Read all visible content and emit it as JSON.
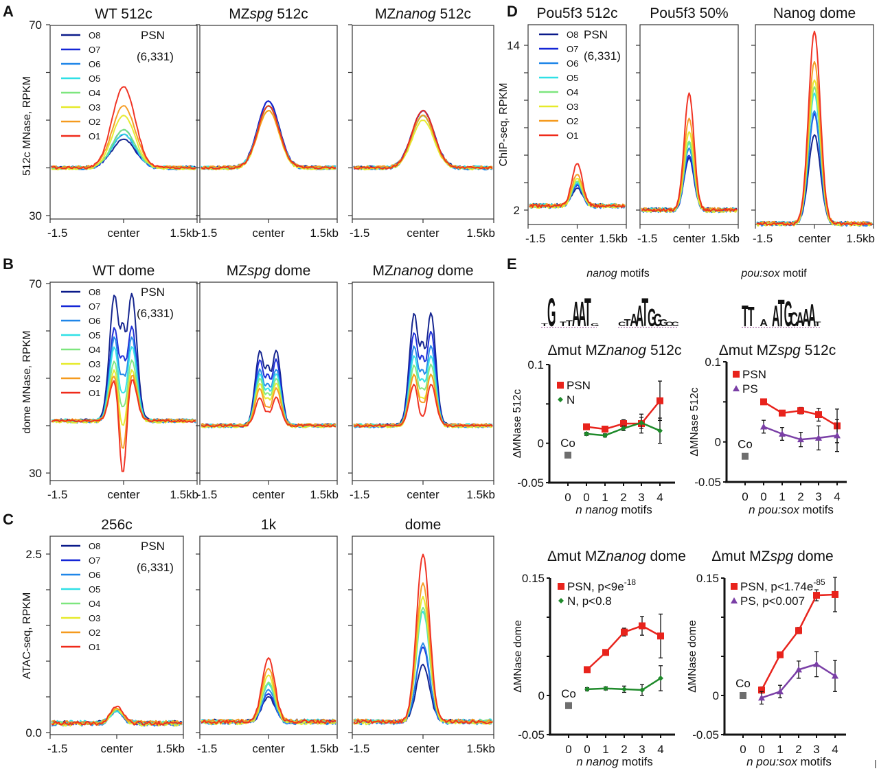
{
  "figure": {
    "panel_letters": [
      "A",
      "B",
      "C",
      "D",
      "E"
    ]
  },
  "profiles_legend": {
    "entries": [
      {
        "label": "O8",
        "color": "#0a1a8a"
      },
      {
        "label": "O7",
        "color": "#1426d6"
      },
      {
        "label": "O6",
        "color": "#1f86e8"
      },
      {
        "label": "O5",
        "color": "#2fe0e6"
      },
      {
        "label": "O4",
        "color": "#7de67e"
      },
      {
        "label": "O3",
        "color": "#e6ea2a"
      },
      {
        "label": "O2",
        "color": "#f59a1e"
      },
      {
        "label": "O1",
        "color": "#ef2a1a"
      }
    ],
    "annotation_line1": "PSN",
    "annotation_line2": "(6,331)"
  },
  "chart_data": [
    {
      "id": "A",
      "type": "line",
      "ylabel": "512c MNase, RPKM",
      "ylim": [
        30,
        70
      ],
      "yticks_labeled": [
        "70",
        "30"
      ],
      "xtick_labels": [
        "-1.5",
        "center",
        "1.5kb"
      ],
      "subplots": [
        {
          "title": "WT 512c",
          "title_parts": [
            [
              "WT 512c",
              false
            ]
          ],
          "peak": {
            "O8": 46,
            "O7": 47,
            "O6": 48,
            "O5": 47,
            "O4": 48,
            "O3": 51,
            "O2": 53,
            "O1": 57
          },
          "baseline": 40,
          "shape": "single",
          "legend": true
        },
        {
          "title": "MZspg 512c",
          "title_parts": [
            [
              "MZ",
              false
            ],
            [
              "spg",
              true
            ],
            [
              " 512c",
              false
            ]
          ],
          "peak": {
            "O8": 54,
            "O7": 54,
            "O6": 53,
            "O5": 53,
            "O4": 53,
            "O3": 52,
            "O2": 52,
            "O1": 53
          },
          "baseline": 40,
          "shape": "single"
        },
        {
          "title": "MZnanog 512c",
          "title_parts": [
            [
              "MZ",
              false
            ],
            [
              "nanog",
              true
            ],
            [
              " 512c",
              false
            ]
          ],
          "peak": {
            "O8": 52,
            "O7": 52,
            "O6": 51,
            "O5": 51,
            "O4": 51,
            "O3": 50,
            "O2": 51,
            "O1": 52
          },
          "baseline": 40,
          "shape": "single"
        }
      ]
    },
    {
      "id": "B",
      "type": "line",
      "ylabel": "dome MNase, RPKM",
      "ylim": [
        30,
        70
      ],
      "yticks_labeled": [
        "70",
        "30"
      ],
      "xtick_labels": [
        "-1.5",
        "center",
        "1.5kb"
      ],
      "subplots": [
        {
          "title": "WT dome",
          "title_parts": [
            [
              "WT dome",
              false
            ]
          ],
          "peak": {
            "O8": 68,
            "O7": 61,
            "O6": 59,
            "O5": 57,
            "O4": 54,
            "O3": 52,
            "O2": 51,
            "O1": 50
          },
          "dip": {
            "O8": 62,
            "O7": 55,
            "O6": 51,
            "O5": 47,
            "O4": 44,
            "O3": 40,
            "O2": 35,
            "O1": 30
          },
          "baseline": 41,
          "shape": "double",
          "legend": true
        },
        {
          "title": "MZspg dome",
          "title_parts": [
            [
              "MZ",
              false
            ],
            [
              "spg",
              true
            ],
            [
              " dome",
              false
            ]
          ],
          "peak": {
            "O8": 56,
            "O7": 54,
            "O6": 52,
            "O5": 51,
            "O4": 50,
            "O3": 49,
            "O2": 48,
            "O1": 46
          },
          "dip": {
            "O8": 53,
            "O7": 51,
            "O6": 49,
            "O5": 48,
            "O4": 47,
            "O3": 46,
            "O2": 44,
            "O1": 43
          },
          "baseline": 40,
          "shape": "double"
        },
        {
          "title": "MZnanog dome",
          "title_parts": [
            [
              "MZ",
              false
            ],
            [
              "nanog",
              true
            ],
            [
              " dome",
              false
            ]
          ],
          "peak": {
            "O8": 64,
            "O7": 60,
            "O6": 57,
            "O5": 55,
            "O4": 53,
            "O3": 51,
            "O2": 51,
            "O1": 49
          },
          "dip": {
            "O8": 58,
            "O7": 55,
            "O6": 52,
            "O5": 50,
            "O4": 48,
            "O3": 46,
            "O2": 45,
            "O1": 42
          },
          "baseline": 40,
          "shape": "double"
        }
      ]
    },
    {
      "id": "C",
      "type": "line",
      "ylabel": "ATAC-seq, RPKM",
      "ylim": [
        0,
        2.5
      ],
      "yticks_labeled": [
        "2.5",
        "0.0"
      ],
      "xtick_labels": [
        "-1.5",
        "center",
        "1.5kb"
      ],
      "subplots": [
        {
          "title": "256c",
          "title_parts": [
            [
              "256c",
              false
            ]
          ],
          "peak": {
            "O8": 0.3,
            "O7": 0.3,
            "O6": 0.3,
            "O5": 0.3,
            "O4": 0.32,
            "O3": 0.33,
            "O2": 0.34,
            "O1": 0.37
          },
          "baseline": 0.13,
          "shape": "single",
          "legend": true
        },
        {
          "title": "1k",
          "title_parts": [
            [
              "1k",
              false
            ]
          ],
          "peak": {
            "O8": 0.5,
            "O7": 0.55,
            "O6": 0.6,
            "O5": 0.68,
            "O4": 0.7,
            "O3": 0.8,
            "O2": 0.9,
            "O1": 1.05
          },
          "baseline": 0.15,
          "shape": "single"
        },
        {
          "title": "dome",
          "title_parts": [
            [
              "dome",
              false
            ]
          ],
          "peak": {
            "O8": 0.95,
            "O7": 1.2,
            "O6": 1.25,
            "O5": 1.7,
            "O4": 1.75,
            "O3": 1.9,
            "O2": 2.1,
            "O1": 2.5
          },
          "baseline": 0.15,
          "shape": "single"
        }
      ]
    },
    {
      "id": "D",
      "type": "line",
      "ylabel": "ChIP-seq, RPKM",
      "ylim": [
        1,
        15
      ],
      "yticks_labeled": [
        "14",
        "2"
      ],
      "xtick_labels": [
        "-1.5",
        "center",
        "1.5kb"
      ],
      "subplots": [
        {
          "title": "Pou5f3 512c",
          "title_parts": [
            [
              "Pou5f3 512c",
              false
            ]
          ],
          "peak": {
            "O8": 3.6,
            "O7": 3.8,
            "O6": 3.9,
            "O5": 4.0,
            "O4": 4.1,
            "O3": 4.3,
            "O2": 4.6,
            "O1": 5.4
          },
          "baseline": 2.3,
          "shape": "single",
          "legend": true
        },
        {
          "title": "Pou5f3 50%",
          "title_parts": [
            [
              "Pou5f3 50%",
              false
            ]
          ],
          "peak": {
            "O8": 5.8,
            "O7": 6.0,
            "O6": 6.5,
            "O5": 6.9,
            "O4": 7.0,
            "O3": 7.7,
            "O2": 8.7,
            "O1": 10.5
          },
          "baseline": 2.0,
          "shape": "single"
        },
        {
          "title": "Nanog dome",
          "title_parts": [
            [
              "Nanog dome",
              false
            ]
          ],
          "peak": {
            "O8": 7.5,
            "O7": 9.0,
            "O6": 9.2,
            "O5": 10.5,
            "O4": 11.0,
            "O3": 11.5,
            "O2": 12.8,
            "O1": 15.0
          },
          "baseline": 1.0,
          "shape": "single"
        }
      ]
    },
    {
      "id": "E1",
      "type": "line",
      "title": "Δmut MZnanog 512c",
      "title_parts": [
        [
          "Δmut MZ",
          false
        ],
        [
          "nanog",
          true
        ],
        [
          " 512c",
          false
        ]
      ],
      "ylabel": "ΔMNase 512c",
      "ylim": [
        -0.05,
        0.1
      ],
      "yticks": [
        "0.1",
        "0",
        "-0.05"
      ],
      "ytick_values": [
        0.1,
        0,
        -0.05
      ],
      "xlabel_parts": [
        [
          "n nanog",
          true
        ],
        [
          " motifs",
          false
        ]
      ],
      "categories": [
        "0",
        "0",
        "1",
        "2",
        "3",
        "4"
      ],
      "control": {
        "label": "Co",
        "value": -0.015
      },
      "series": [
        {
          "name": "PSN",
          "legend": "PSN",
          "color": "#e8231c",
          "marker": "square",
          "values": [
            0.021,
            0.018,
            0.025,
            0.025,
            0.054
          ],
          "err": [
            0.003,
            0.003,
            0.005,
            0.012,
            0.025
          ]
        },
        {
          "name": "N",
          "legend": "N",
          "color": "#1e8a2a",
          "marker": "diamond",
          "values": [
            0.012,
            0.01,
            0.019,
            0.026,
            0.016
          ],
          "err": [
            0.002,
            0.002,
            0.003,
            0.007,
            0.016
          ]
        }
      ]
    },
    {
      "id": "E2",
      "type": "line",
      "title": "Δmut MZspg 512c",
      "title_parts": [
        [
          "Δmut MZ",
          false
        ],
        [
          "spg",
          true
        ],
        [
          " 512c",
          false
        ]
      ],
      "ylabel": "ΔMNase 512c",
      "ylim": [
        -0.05,
        0.1
      ],
      "yticks": [
        "0.1",
        "0",
        "-0.05"
      ],
      "ytick_values": [
        0.1,
        0,
        -0.05
      ],
      "xlabel_parts": [
        [
          "n pou:sox",
          true
        ],
        [
          " motifs",
          false
        ]
      ],
      "categories": [
        "0",
        "0",
        "1",
        "2",
        "3",
        "4"
      ],
      "control": {
        "label": "Co",
        "value": -0.018
      },
      "series": [
        {
          "name": "PSN",
          "legend": "PSN",
          "color": "#e8231c",
          "marker": "square",
          "values": [
            0.05,
            0.036,
            0.039,
            0.034,
            0.02
          ],
          "err": [
            0.002,
            0.003,
            0.004,
            0.008,
            0.021
          ]
        },
        {
          "name": "PS",
          "legend": "PS",
          "color": "#7a3fa6",
          "marker": "triangle",
          "values": [
            0.019,
            0.01,
            0.003,
            0.005,
            0.008
          ],
          "err": [
            0.008,
            0.008,
            0.009,
            0.015,
            0.02
          ]
        }
      ]
    },
    {
      "id": "E3",
      "type": "line",
      "title": "Δmut MZnanog dome",
      "title_parts": [
        [
          "Δmut MZ",
          false
        ],
        [
          "nanog",
          true
        ],
        [
          " dome",
          false
        ]
      ],
      "ylabel": "ΔMNase dome",
      "ylim": [
        -0.05,
        0.15
      ],
      "yticks": [
        "0.15",
        "0",
        "-0.05"
      ],
      "ytick_values": [
        0.15,
        0,
        -0.05
      ],
      "xlabel_parts": [
        [
          "n nanog",
          true
        ],
        [
          " motifs",
          false
        ]
      ],
      "categories": [
        "0",
        "0",
        "1",
        "2",
        "3",
        "4"
      ],
      "control": {
        "label": "Co",
        "value": -0.013
      },
      "series": [
        {
          "name": "PSN",
          "legend": "PSN, p<9e",
          "legend_sup": "-18",
          "color": "#e8231c",
          "marker": "square",
          "values": [
            0.033,
            0.055,
            0.081,
            0.089,
            0.076
          ],
          "err": [
            0.002,
            0.002,
            0.005,
            0.012,
            0.028
          ]
        },
        {
          "name": "N",
          "legend": "N, p<0.8",
          "legend_sup": "",
          "color": "#1e8a2a",
          "marker": "diamond",
          "values": [
            0.008,
            0.009,
            0.008,
            0.007,
            0.022
          ],
          "err": [
            0.002,
            0.002,
            0.004,
            0.007,
            0.016
          ]
        }
      ]
    },
    {
      "id": "E4",
      "type": "line",
      "title": "Δmut MZspg dome",
      "title_parts": [
        [
          "Δmut MZ",
          false
        ],
        [
          "spg",
          true
        ],
        [
          " dome",
          false
        ]
      ],
      "ylabel": "ΔMNase dome",
      "ylim": [
        -0.05,
        0.15
      ],
      "yticks": [
        "0.15",
        "0",
        "-0.05"
      ],
      "ytick_values": [
        0.15,
        0,
        -0.05
      ],
      "xlabel_parts": [
        [
          "n pou:sox",
          true
        ],
        [
          " motifs",
          false
        ]
      ],
      "categories": [
        "0",
        "0",
        "1",
        "2",
        "3",
        "4"
      ],
      "control": {
        "label": "Co",
        "value": 0
      },
      "series": [
        {
          "name": "PSN",
          "legend": "PSN, p<1.74e",
          "legend_sup": "-85",
          "color": "#e8231c",
          "marker": "square",
          "values": [
            0.007,
            0.052,
            0.083,
            0.128,
            0.129
          ],
          "err": [
            0.004,
            0.002,
            0.004,
            0.007,
            0.022
          ]
        },
        {
          "name": "PS",
          "legend": "PS, p<0.007",
          "legend_sup": "",
          "color": "#7a3fa6",
          "marker": "triangle",
          "values": [
            -0.003,
            0.005,
            0.033,
            0.04,
            0.025
          ],
          "err": [
            0.008,
            0.008,
            0.011,
            0.016,
            0.02
          ]
        }
      ]
    }
  ],
  "motifs": {
    "nanog_title_italic": "nanog",
    "nanog_title_rest": " motifs",
    "pousox_title_italic": "pou:sox",
    "pousox_title_rest": " motif",
    "logo1": "TG TTAATG",
    "logo2": "CTAATGGGCC",
    "logo3": "TT A ATGCAAAT",
    "letter_colors": {
      "A": "#d42a2a",
      "C": "#2a3fc8",
      "G": "#f0a818",
      "T": "#1e8a3a"
    }
  }
}
